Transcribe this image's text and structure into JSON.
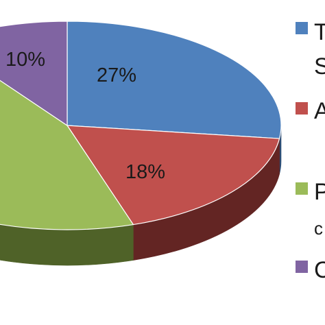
{
  "chart_data": {
    "type": "pie",
    "style": "3d",
    "slices": [
      {
        "label": "T",
        "value": 27,
        "display": "27%",
        "color": "#4f81bd",
        "side_color": "#2c4d75"
      },
      {
        "label": "A",
        "value": 18,
        "display": "18%",
        "color": "#c0504d",
        "side_color": "#632523"
      },
      {
        "label": "P",
        "value": 45,
        "display": "",
        "color": "#9bbb59",
        "side_color": "#4f6228"
      },
      {
        "label": "C",
        "value": 10,
        "display": "10%",
        "color": "#8064a2",
        "side_color": "#3f3151"
      }
    ],
    "legend": {
      "placement": "right",
      "entries": [
        {
          "text": "T",
          "sub": "S",
          "color": "#4f81bd"
        },
        {
          "text": "A",
          "sub": "",
          "color": "#c0504d"
        },
        {
          "text": "P",
          "sub": "c",
          "color": "#9bbb59"
        },
        {
          "text": "C",
          "sub": "",
          "color": "#8064a2"
        }
      ]
    }
  }
}
